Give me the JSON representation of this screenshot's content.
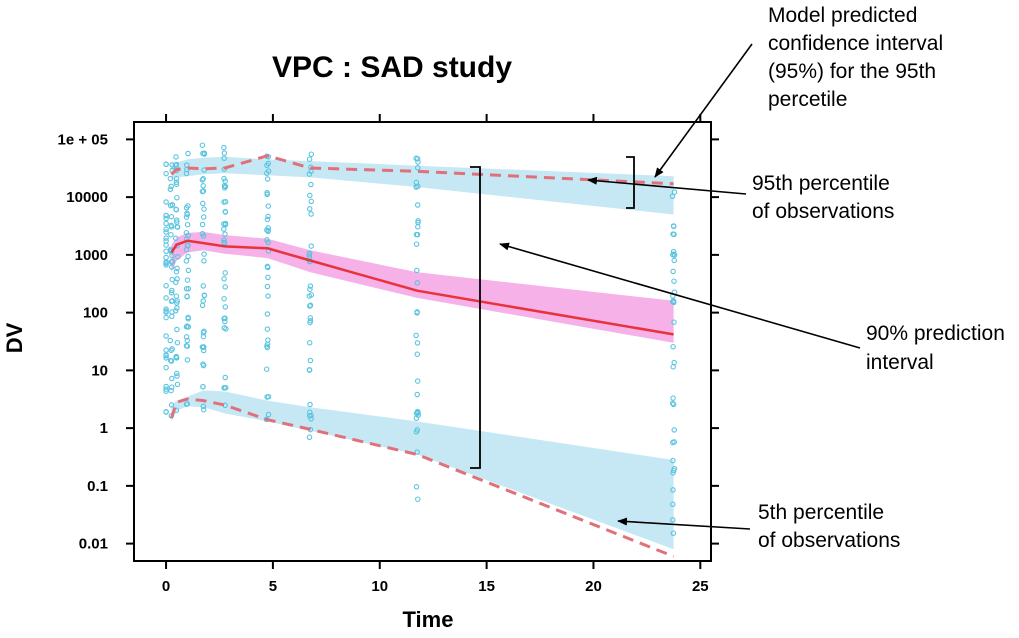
{
  "chart_data": {
    "type": "scatter",
    "title": "VPC : SAD study",
    "xlabel": "Time",
    "ylabel": "DV",
    "x_range": [
      -1.5,
      25.5
    ],
    "y_scale": "log",
    "y_range": [
      0.005,
      200000
    ],
    "x_ticks": [
      {
        "value": 0,
        "label": "0"
      },
      {
        "value": 5,
        "label": "5"
      },
      {
        "value": 10,
        "label": "10"
      },
      {
        "value": 15,
        "label": "15"
      },
      {
        "value": 20,
        "label": "20"
      },
      {
        "value": 25,
        "label": "25"
      }
    ],
    "y_ticks": [
      {
        "value": 100000,
        "label": "1e + 05"
      },
      {
        "value": 10000,
        "label": "10000"
      },
      {
        "value": 1000,
        "label": "1000"
      },
      {
        "value": 100,
        "label": "100"
      },
      {
        "value": 10,
        "label": "10"
      },
      {
        "value": 1,
        "label": "1"
      },
      {
        "value": 0.1,
        "label": "0.1"
      },
      {
        "value": 0.01,
        "label": "0.01"
      }
    ],
    "bands": [
      {
        "role": "95th percentile confidence interval",
        "color": "#bfe6f3",
        "x": [
          0.25,
          0.5,
          1,
          1.75,
          2.75,
          4.75,
          6.75,
          11.75,
          23.75
        ],
        "lower": [
          20000,
          22000,
          23000,
          25000,
          26000,
          24000,
          22000,
          15000,
          5000
        ],
        "upper": [
          38000,
          40000,
          45000,
          48000,
          50000,
          45000,
          42000,
          35000,
          23000
        ]
      },
      {
        "role": "90% prediction interval",
        "color": "#f5a8e6",
        "x": [
          0.25,
          0.5,
          1,
          1.75,
          2.75,
          4.75,
          6.75,
          11.75,
          23.75
        ],
        "lower": [
          500,
          800,
          1100,
          1200,
          1050,
          880,
          500,
          180,
          30
        ],
        "upper": [
          1500,
          2000,
          2400,
          2500,
          2200,
          1900,
          1200,
          500,
          160
        ]
      },
      {
        "role": "5th percentile confidence interval",
        "color": "#bfe6f3",
        "x": [
          0.25,
          0.5,
          1,
          1.75,
          2.75,
          4.75,
          6.75,
          11.75,
          23.75
        ],
        "lower": [
          1.3,
          2.0,
          2.4,
          2.3,
          1.8,
          1.3,
          0.9,
          0.35,
          0.008
        ],
        "upper": [
          2.5,
          3.0,
          3.5,
          4.5,
          4.3,
          3.0,
          2.3,
          1.3,
          0.28
        ]
      }
    ],
    "lines": [
      {
        "role": "observed 95th percentile",
        "style": "dashed",
        "color": "#e0707a",
        "x": [
          0.25,
          0.5,
          1,
          1.75,
          2.75,
          4.75,
          6.75,
          11.75,
          23.75
        ],
        "y": [
          25000,
          30000,
          32000,
          31000,
          32000,
          52000,
          32000,
          28000,
          17000
        ]
      },
      {
        "role": "observed median",
        "style": "solid",
        "color": "#e8333c",
        "x": [
          0.25,
          0.5,
          1,
          1.75,
          2.75,
          4.75,
          6.75,
          11.75,
          23.75
        ],
        "y": [
          1100,
          1500,
          1750,
          1600,
          1400,
          1300,
          800,
          240,
          42
        ]
      },
      {
        "role": "observed 5th percentile",
        "style": "dashed",
        "color": "#e0707a",
        "x": [
          0.25,
          0.5,
          1,
          1.75,
          2.75,
          4.75,
          6.75,
          11.75,
          23.75
        ],
        "y": [
          1.5,
          2.8,
          3.2,
          3.0,
          2.5,
          1.4,
          0.95,
          0.35,
          0.006
        ]
      }
    ],
    "observations": {
      "color": "#5bc4e0",
      "times": [
        0,
        0.25,
        0.5,
        1,
        1.75,
        2.75,
        4.75,
        6.75,
        11.75,
        23.75
      ],
      "y_ranges": [
        [
          0.8,
          50000
        ],
        [
          1.5,
          40000
        ],
        [
          1.5,
          55000
        ],
        [
          2.5,
          60000
        ],
        [
          2.0,
          80000
        ],
        [
          1.8,
          80000
        ],
        [
          1.2,
          60000
        ],
        [
          0.5,
          60000
        ],
        [
          0.05,
          55000
        ],
        [
          0.012,
          28000
        ]
      ],
      "points_per_time": 36
    },
    "annotations": [
      {
        "text_lines": [
          "Model predicted",
          "confidence interval",
          "(95%) for the 95th",
          "percetile"
        ]
      },
      {
        "text_lines": [
          "95th percentile",
          "of observations"
        ]
      },
      {
        "text_lines": [
          "90% prediction",
          "interval"
        ]
      },
      {
        "text_lines": [
          "5th percentile",
          "of observations"
        ]
      }
    ]
  }
}
